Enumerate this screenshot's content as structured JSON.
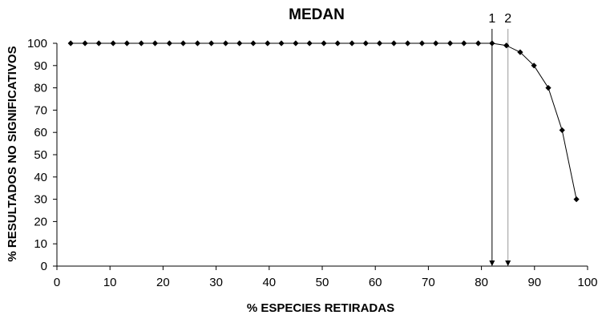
{
  "chart_data": {
    "type": "line",
    "title": "MEDAN",
    "xlabel": "% ESPECIES RETIRADAS",
    "ylabel": "% RESULTADOS NO SIGNIFICATIVOS",
    "xlim": [
      0,
      100
    ],
    "ylim": [
      0,
      100
    ],
    "x_ticks": [
      "0",
      "10",
      "20",
      "30",
      "40",
      "50",
      "60",
      "70",
      "80",
      "90",
      "100"
    ],
    "y_ticks": [
      "0",
      "10",
      "20",
      "30",
      "40",
      "50",
      "60",
      "70",
      "80",
      "90",
      "100"
    ],
    "grid": false,
    "legend": "none",
    "marker": "diamond",
    "series": [
      {
        "color": "#000000",
        "x": [
          2.6,
          5.3,
          7.9,
          10.6,
          13.2,
          15.9,
          18.5,
          21.2,
          23.8,
          26.5,
          29.1,
          31.8,
          34.4,
          37.0,
          39.7,
          42.3,
          45.0,
          47.6,
          50.3,
          52.9,
          55.6,
          58.2,
          60.8,
          63.5,
          66.1,
          68.8,
          71.4,
          74.1,
          76.7,
          79.4,
          82.0,
          84.7,
          87.3,
          89.9,
          92.6,
          95.2,
          97.9
        ],
        "y": [
          100,
          100,
          100,
          100,
          100,
          100,
          100,
          100,
          100,
          100,
          100,
          100,
          100,
          100,
          100,
          100,
          100,
          100,
          100,
          100,
          100,
          100,
          100,
          100,
          100,
          100,
          100,
          100,
          100,
          100,
          100,
          99,
          96,
          90,
          80,
          61,
          30
        ]
      }
    ],
    "annotations": [
      {
        "label": "1",
        "x": 82
      },
      {
        "label": "2",
        "x": 85
      }
    ]
  }
}
